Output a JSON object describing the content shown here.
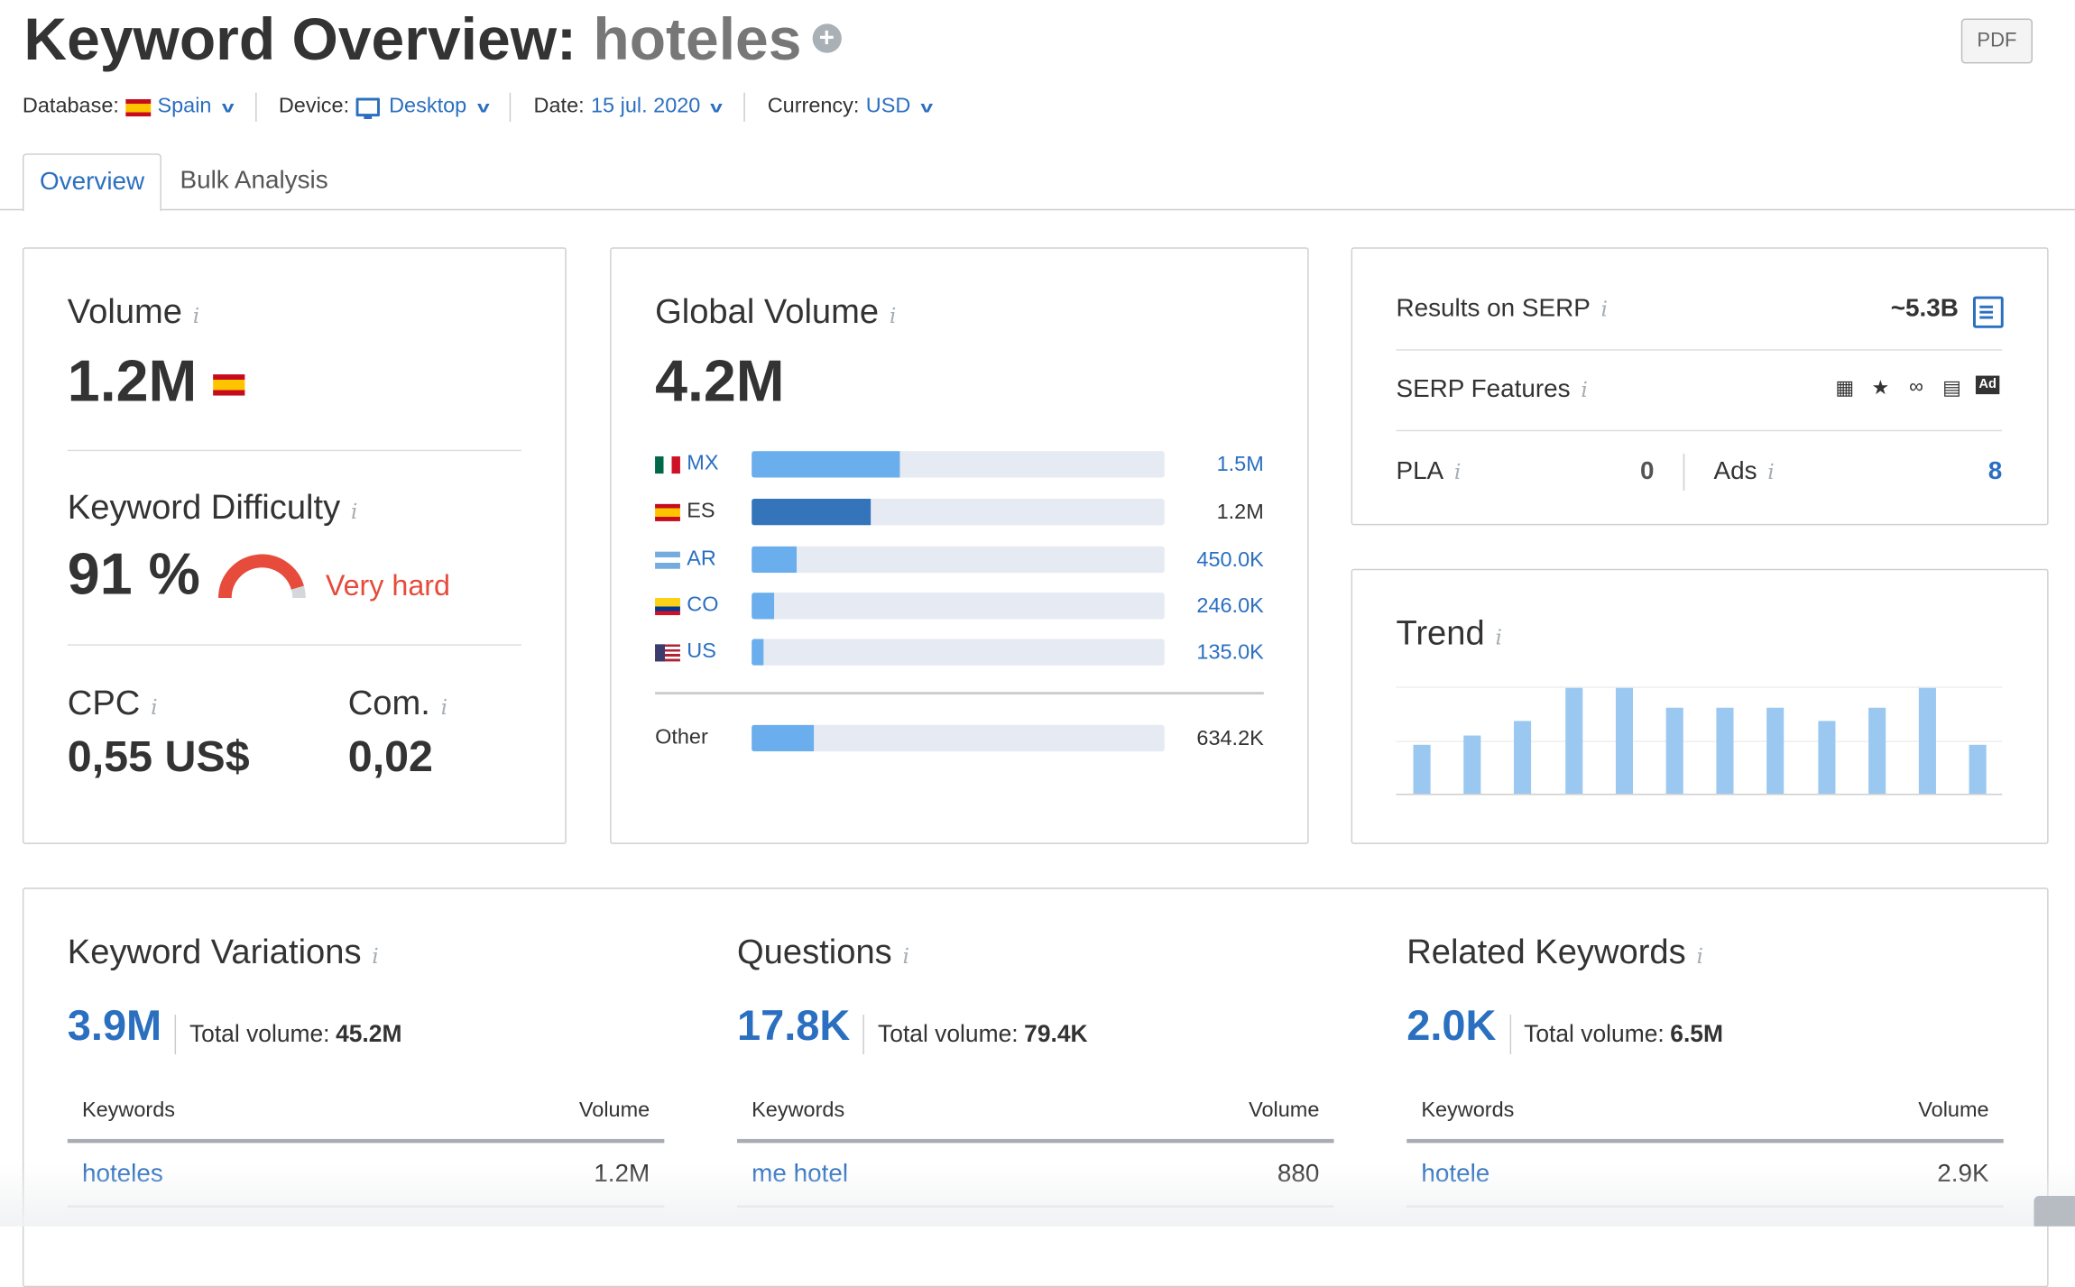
{
  "header": {
    "title_prefix": "Keyword Overview:",
    "keyword": "hoteles",
    "add_icon": "plus-circle-icon",
    "pdf_label": "PDF"
  },
  "filters": {
    "database_label": "Database:",
    "database_value": "Spain",
    "device_label": "Device:",
    "device_value": "Desktop",
    "date_label": "Date:",
    "date_value": "15 jul. 2020",
    "currency_label": "Currency:",
    "currency_value": "USD"
  },
  "tabs": [
    {
      "label": "Overview",
      "active": true
    },
    {
      "label": "Bulk Analysis",
      "active": false
    }
  ],
  "volume": {
    "title": "Volume",
    "value": "1.2M"
  },
  "difficulty": {
    "title": "Keyword Difficulty",
    "value": "91 %",
    "percent": 91,
    "label": "Very hard",
    "color": "#e64b3b"
  },
  "cpc": {
    "title": "CPC",
    "value": "0,55 US$"
  },
  "com": {
    "title": "Com.",
    "value": "0,02"
  },
  "global": {
    "title": "Global Volume",
    "value": "4.2M",
    "rows": [
      {
        "code": "MX",
        "value": "1.5M",
        "fraction": 0.36,
        "link": true
      },
      {
        "code": "ES",
        "value": "1.2M",
        "fraction": 0.29,
        "link": false,
        "highlight": true
      },
      {
        "code": "AR",
        "value": "450.0K",
        "fraction": 0.11,
        "link": true
      },
      {
        "code": "CO",
        "value": "246.0K",
        "fraction": 0.056,
        "link": true
      },
      {
        "code": "US",
        "value": "135.0K",
        "fraction": 0.03,
        "link": true
      }
    ],
    "other": {
      "label": "Other",
      "value": "634.2K",
      "fraction": 0.15
    }
  },
  "serp": {
    "results_label": "Results on SERP",
    "results_value": "~5.3B",
    "features_label": "SERP Features",
    "feature_icons": [
      "hotel-icon",
      "star-icon",
      "link-icon",
      "news-icon",
      "ad-icon"
    ],
    "pla_label": "PLA",
    "pla_value": "0",
    "ads_label": "Ads",
    "ads_value": "8"
  },
  "trend": {
    "title": "Trend",
    "values": [
      0.46,
      0.55,
      0.69,
      1,
      1,
      0.81,
      0.81,
      0.81,
      0.69,
      0.81,
      1,
      0.46
    ]
  },
  "sections": [
    {
      "title": "Keyword Variations",
      "count": "3.9M",
      "total_label": "Total volume:",
      "total": "45.2M",
      "col1": "Keywords",
      "col2": "Volume",
      "rows": [
        {
          "keyword": "hoteles",
          "volume": "1.2M"
        }
      ]
    },
    {
      "title": "Questions",
      "count": "17.8K",
      "total_label": "Total volume:",
      "total": "79.4K",
      "col1": "Keywords",
      "col2": "Volume",
      "rows": [
        {
          "keyword": "me hotel",
          "volume": "880"
        }
      ]
    },
    {
      "title": "Related Keywords",
      "count": "2.0K",
      "total_label": "Total volume:",
      "total": "6.5M",
      "col1": "Keywords",
      "col2": "Volume",
      "rows": [
        {
          "keyword": "hotele",
          "volume": "2.9K"
        }
      ]
    }
  ],
  "colors": {
    "accent": "#2b6fc0",
    "bar": "#6aaeee",
    "bar_highlight": "#3374bb",
    "bar_bg": "#e6eaf2",
    "trend": "#9ac8f0",
    "gauge_gray": "#d5d8db"
  }
}
